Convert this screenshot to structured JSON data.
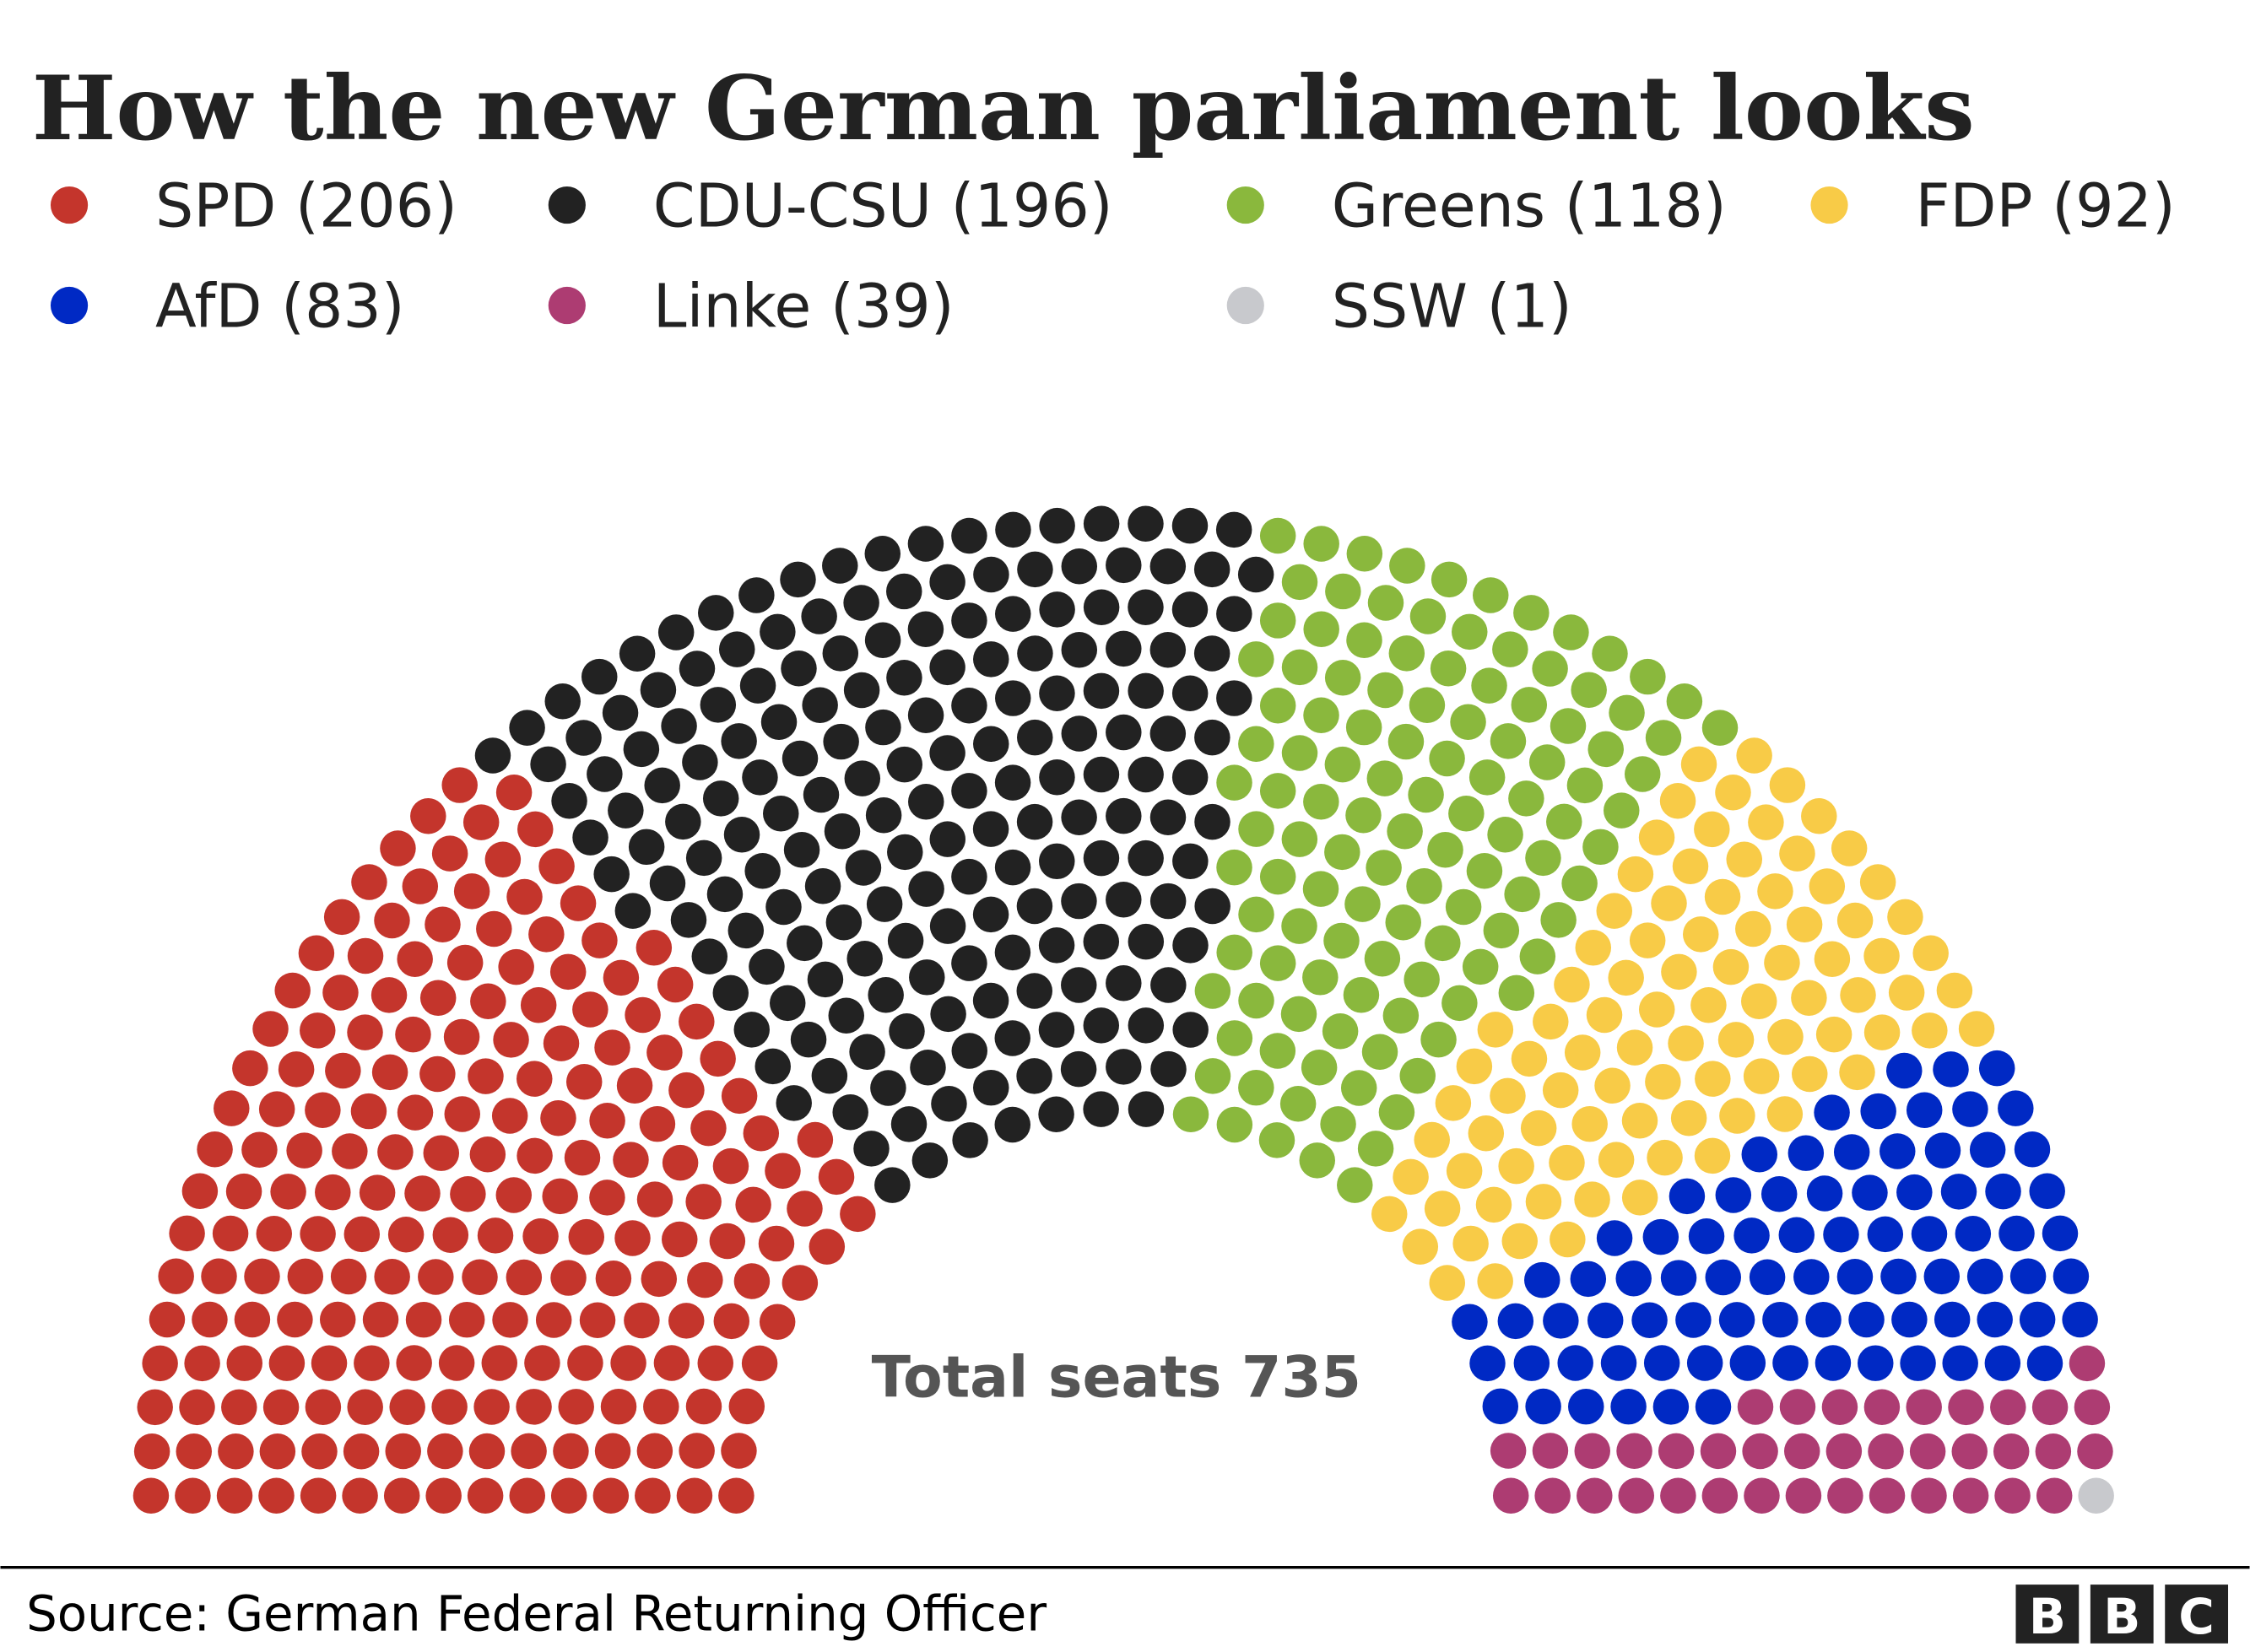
{
  "chart_data": {
    "type": "parliament",
    "title": "How the new German parliament looks",
    "total_label": "Total seats 735",
    "total": 735,
    "rows": 15,
    "legend_placement": "top",
    "series": [
      {
        "name": "SPD",
        "label": "SPD (206)",
        "value": 206,
        "color": "#c4352c"
      },
      {
        "name": "CDU-CSU",
        "label": "CDU-CSU (196)",
        "value": 196,
        "color": "#222222"
      },
      {
        "name": "Greens",
        "label": "Greens (118)",
        "value": 118,
        "color": "#8ab83d"
      },
      {
        "name": "FDP",
        "label": "FDP (92)",
        "value": 92,
        "color": "#f8cb47"
      },
      {
        "name": "AfD",
        "label": "AfD (83)",
        "value": 83,
        "color": "#0029c4"
      },
      {
        "name": "Linke",
        "label": "Linke (39)",
        "value": 39,
        "color": "#ad3c72"
      },
      {
        "name": "SSW",
        "label": "SSW (1)",
        "value": 1,
        "color": "#c8c9cd"
      }
    ]
  },
  "footer": {
    "source": "Source: German Federal Returning Officer",
    "logo": "BBC"
  }
}
